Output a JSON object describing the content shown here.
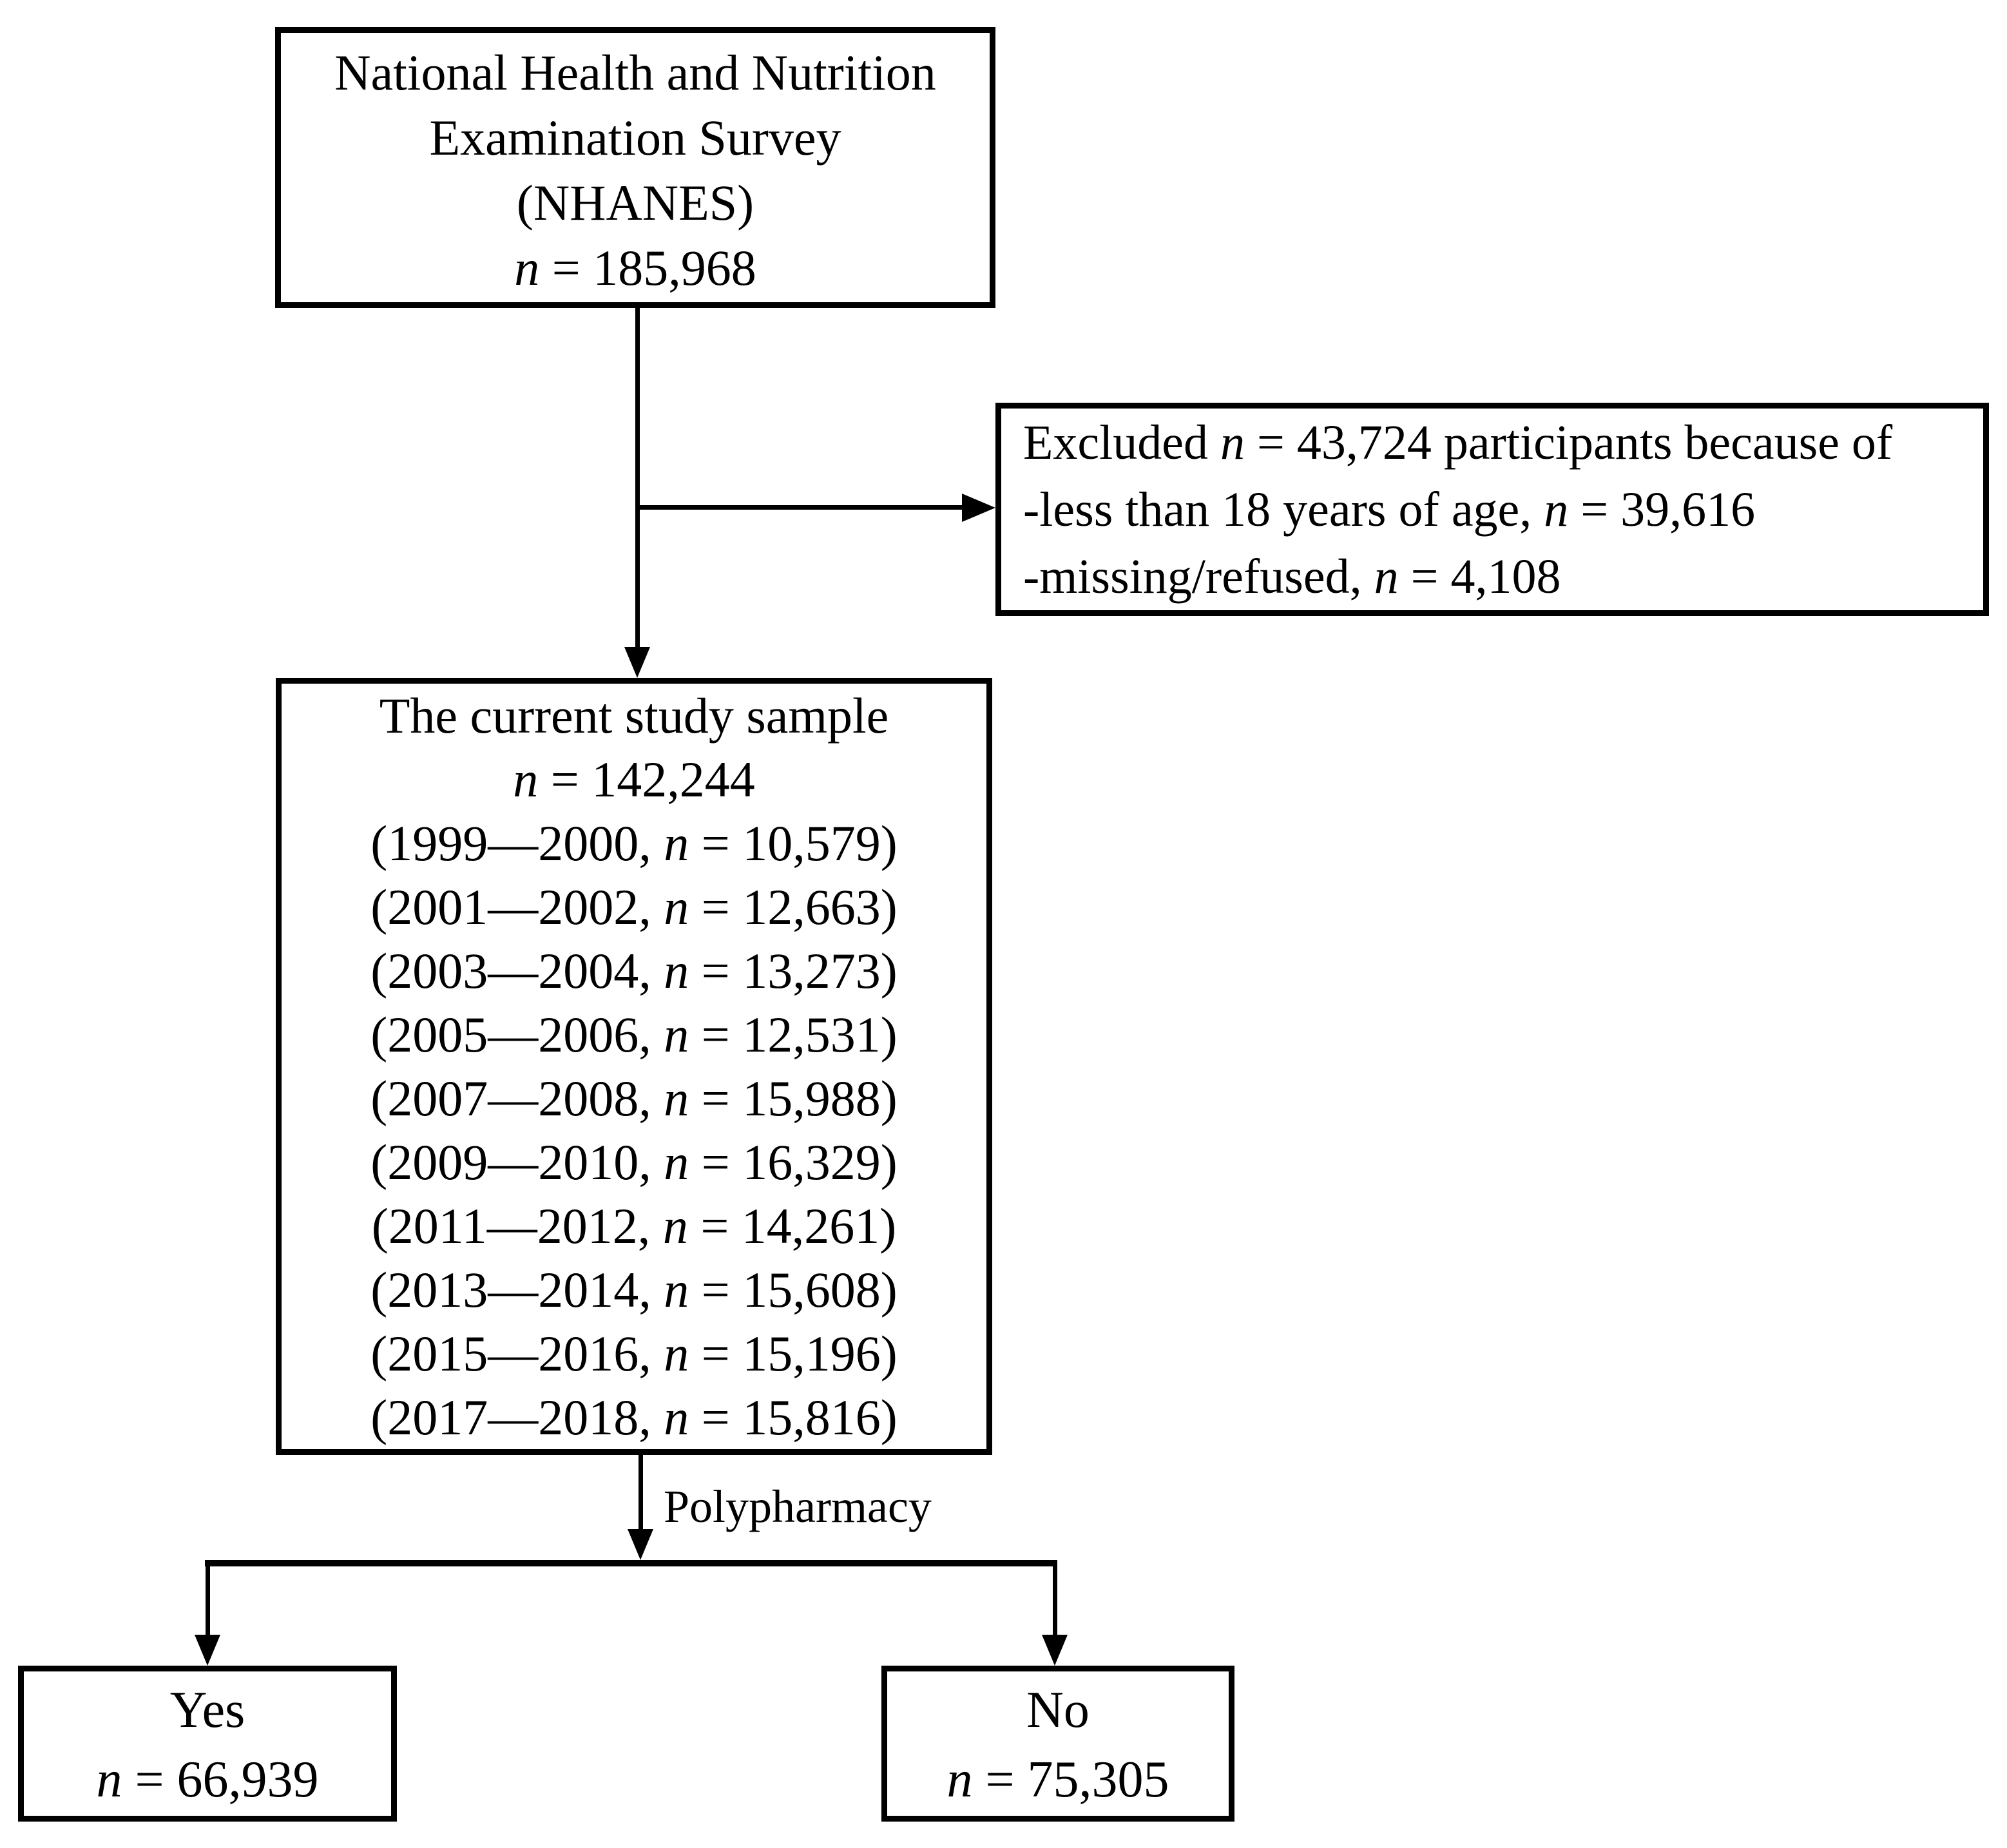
{
  "diagram": {
    "top_box": {
      "lines": [
        "National Health and Nutrition",
        "Examination Survey",
        "(NHANES)",
        "n = 185,968"
      ]
    },
    "excluded_box": {
      "lines": [
        "Excluded n = 43,724 participants because of",
        "-less than 18 years of age, n = 39,616",
        "-missing/refused, n = 4,108"
      ]
    },
    "current_box": {
      "lines": [
        "The current study sample",
        "n = 142,244",
        "(1999—2000, n = 10,579)",
        "(2001—2002, n = 12,663)",
        "(2003—2004, n = 13,273)",
        "(2005—2006, n = 12,531)",
        "(2007—2008, n = 15,988)",
        "(2009—2010, n = 16,329)",
        "(2011—2012, n = 14,261)",
        "(2013—2014, n = 15,608)",
        "(2015—2016, n = 15,196)",
        "(2017—2018, n = 15,816)"
      ]
    },
    "branch_label": "Polypharmacy",
    "yes_box": {
      "lines": [
        "Yes",
        "n = 66,939"
      ]
    },
    "no_box": {
      "lines": [
        "No",
        "n = 75,305"
      ]
    },
    "colors": {
      "line": "#000000",
      "background": "#ffffff"
    }
  }
}
